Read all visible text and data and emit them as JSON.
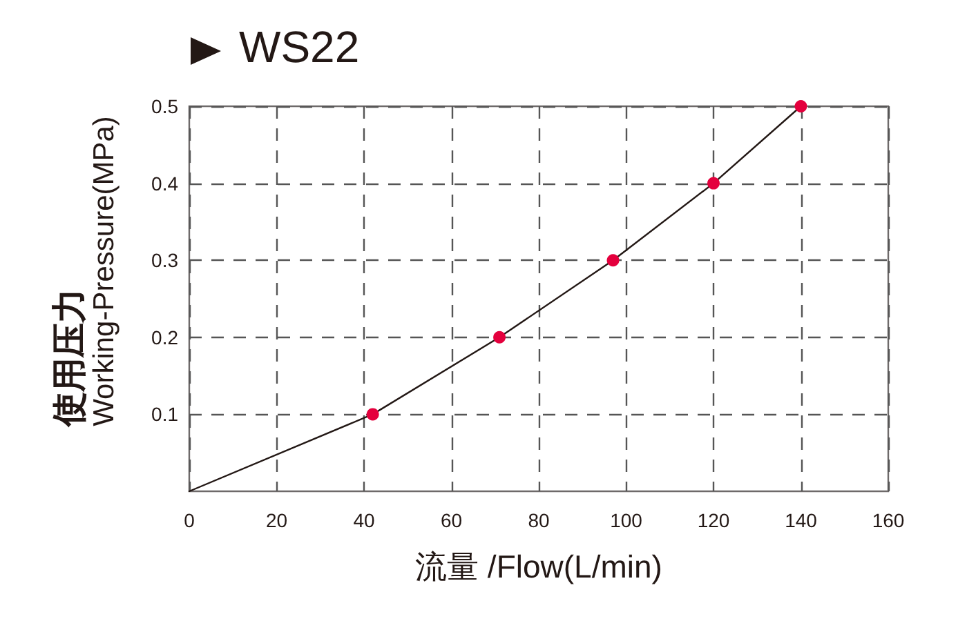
{
  "chart_data": {
    "type": "line",
    "title": "WS22",
    "xlabel": "流量 /Flow(L/min)",
    "ylabel": "使用压力\nWorking-Pressure(MPa)",
    "xlim": [
      0,
      160
    ],
    "xticks": [
      0,
      20,
      40,
      60,
      80,
      100,
      120,
      140,
      160
    ],
    "ylim": [
      0,
      0.5
    ],
    "yticks": [
      0.1,
      0.2,
      0.3,
      0.4,
      0.5
    ],
    "grid": true,
    "series": [
      {
        "color": "#231815",
        "marker": "none",
        "x": [
          0,
          42,
          71,
          97,
          120,
          140
        ],
        "values": [
          0,
          0.1,
          0.2,
          0.3,
          0.4,
          0.5
        ]
      },
      {
        "type": "scatter",
        "color": "#e4003d",
        "marker": "circle",
        "x": [
          42,
          71,
          97,
          120,
          140
        ],
        "values": [
          0.1,
          0.2,
          0.3,
          0.4,
          0.5
        ]
      }
    ]
  }
}
